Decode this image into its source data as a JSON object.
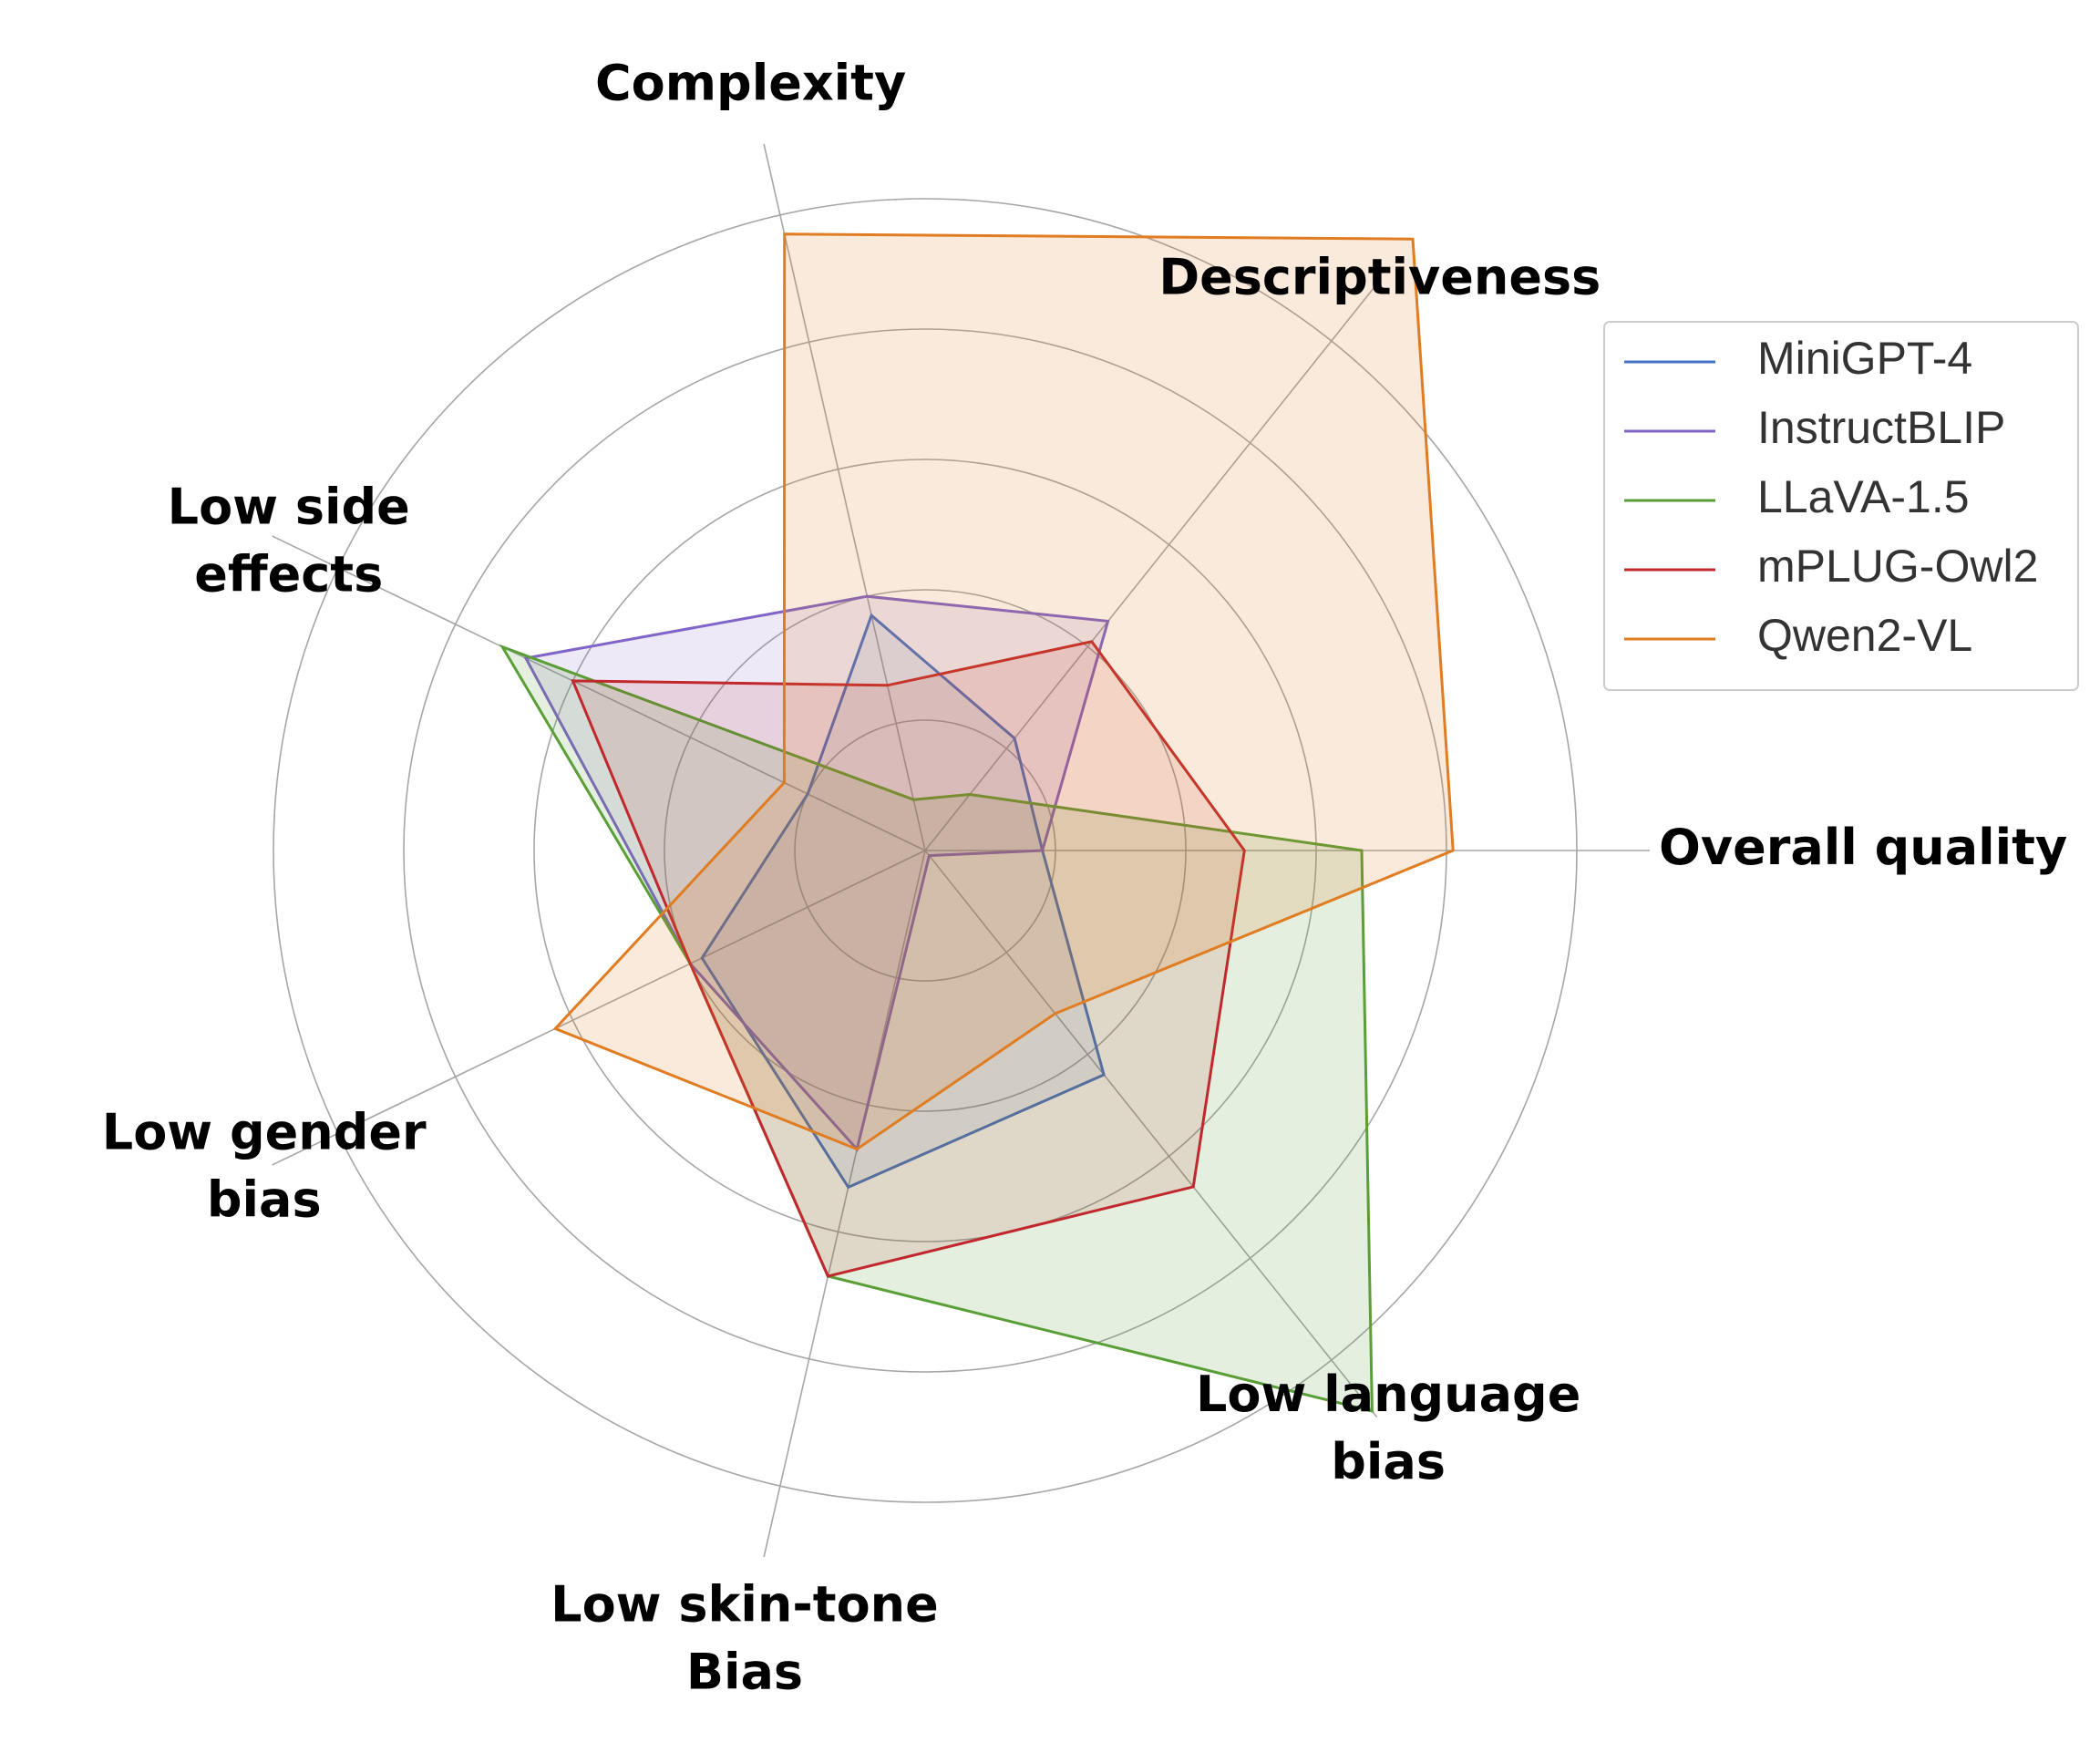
{
  "chart_data": {
    "type": "radar",
    "title": "",
    "axes": [
      "Overall quality",
      "Descriptiveness",
      "Complexity",
      "Low side effects",
      "Low gender bias",
      "Low skin-tone Bias",
      "Low language bias"
    ],
    "axis_labels": [
      [
        "Overall quality"
      ],
      [
        "Descriptiveness"
      ],
      [
        "Complexity"
      ],
      [
        "Low side",
        "effects"
      ],
      [
        "Low gender",
        "bias"
      ],
      [
        "Low skin-tone",
        "Bias"
      ],
      [
        "Low language",
        "bias"
      ]
    ],
    "rmax": 5,
    "grid_rings": [
      1,
      2,
      3,
      4,
      5
    ],
    "series": [
      {
        "name": "MiniGPT-4",
        "color": "#4472c4",
        "fill_opacity": 0.1,
        "values": [
          0.9,
          1.1,
          1.85,
          1.0,
          1.9,
          2.65,
          2.2
        ]
      },
      {
        "name": "InstructBLIP",
        "color": "#8064c8",
        "fill_opacity": 0.14,
        "values": [
          0.9,
          2.25,
          2.0,
          3.4,
          2.0,
          2.35,
          0.05
        ]
      },
      {
        "name": "LLaVA-1.5",
        "color": "#5a9e37",
        "fill_opacity": 0.16,
        "values": [
          3.35,
          0.55,
          0.4,
          3.6,
          2.0,
          3.35,
          5.5
        ]
      },
      {
        "name": "mPLUG-Owl2",
        "color": "#c0282d",
        "fill_opacity": 0.12,
        "values": [
          2.45,
          2.05,
          1.3,
          3.0,
          2.0,
          3.35,
          3.3
        ]
      },
      {
        "name": "Qwen2-VL",
        "color": "#e07c22",
        "fill_opacity": 0.16,
        "values": [
          4.05,
          6.0,
          4.85,
          1.2,
          3.15,
          2.35,
          1.6
        ]
      }
    ],
    "legend_position": "top-right"
  }
}
